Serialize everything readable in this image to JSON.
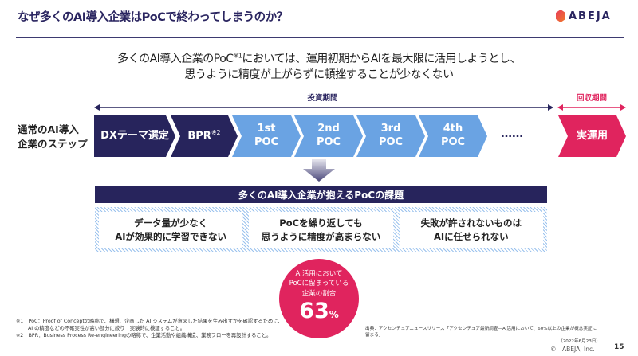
{
  "header": {
    "title": "なぜ多くのAI導入企業はPoCで終わってしまうのか？",
    "logo": "ABEJA"
  },
  "lead": {
    "line1_a": "多くのAI導入企業のPoC",
    "line1_sup": "※1",
    "line1_b": "においては、運用初期からAIを最大限に活用しようとし、",
    "line2": "思うように精度が上がらずに頓挫することが少なくない"
  },
  "periods": {
    "invest": "投資期間",
    "recover": "回収期間",
    "invest_color": "#27245c",
    "recover_color": "#e0245e"
  },
  "steps": {
    "label_line1": "通常のAI導入",
    "label_line2": "企業のステップ",
    "items": [
      {
        "l1": "DXテーマ選定"
      },
      {
        "l1": "BPR",
        "sup": "※2"
      },
      {
        "l1": "1st",
        "l2": "POC"
      },
      {
        "l1": "2nd",
        "l2": "POC"
      },
      {
        "l1": "3rd",
        "l2": "POC"
      },
      {
        "l1": "4th",
        "l2": "POC"
      }
    ],
    "ellipsis": "……",
    "final": "実運用"
  },
  "issues": {
    "title": "多くのAI導入企業が抱えるPoCの課題",
    "items": [
      {
        "l1": "データ量が少なく",
        "l2": "AIが効果的に学習できない"
      },
      {
        "l1": "PoCを繰り返しても",
        "l2": "思うように精度が高まらない"
      },
      {
        "l1": "失敗が許されないものは",
        "l2": "AIに任せられない"
      }
    ]
  },
  "stat": {
    "l1": "AI活用において",
    "l2": "PoCに留まっている",
    "l3": "企業の割合",
    "value": "63",
    "unit": "%"
  },
  "footnotes": [
    "※1　PoC：Proof of Conceptの略称で、構想、企画した AI システムが意図した結果を生み出すかを確認するために、",
    "AI の精度などの不確実性が高い部分に絞り　実験的に検証すること。",
    "※2　BPR：Business Process Re-engineeringの略称で、企業活動や組織構造、業務フローを再設計すること。"
  ],
  "source": {
    "line1": "出典：アクセンチュアニュースリリース「アクセンチュア最新調査―AI活用において、60%以上の企業が概念実証に留まる」",
    "line2": "（2022年6月23日）"
  },
  "footer": {
    "copyright": "©　ABEJA, Inc.",
    "page": "15"
  }
}
